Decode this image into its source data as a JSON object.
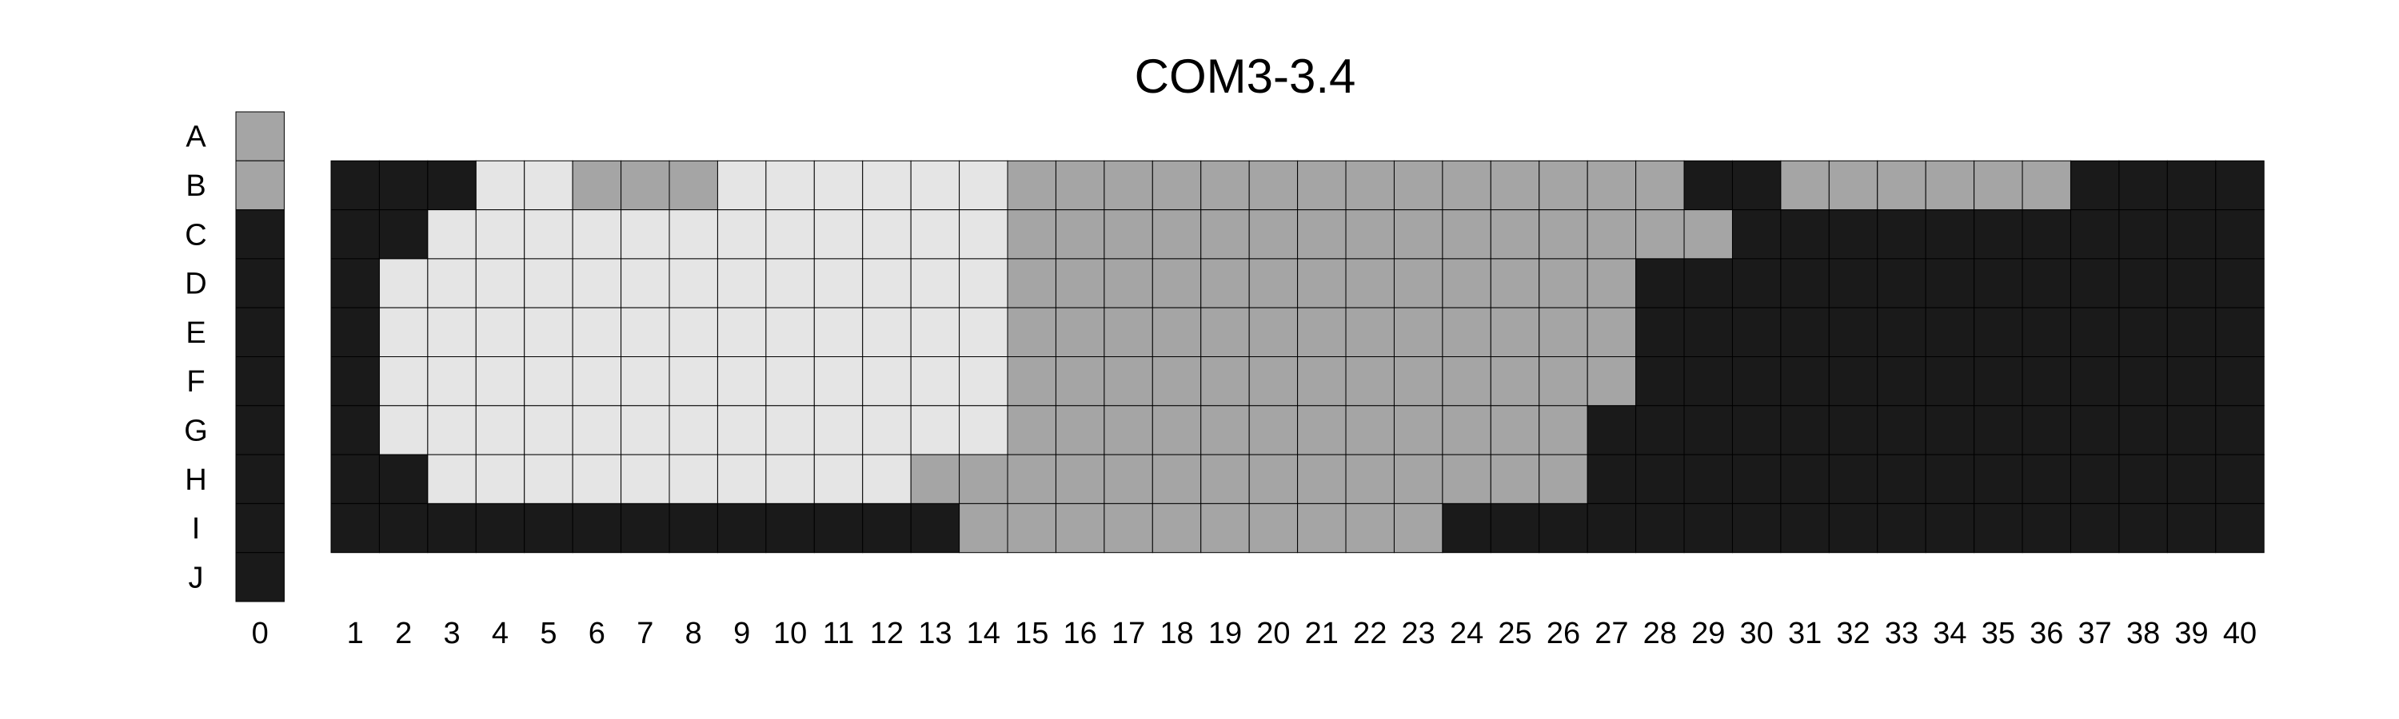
{
  "chart_data": {
    "type": "heatmap",
    "title": "COM3-3.4",
    "rows": [
      "A",
      "B",
      "C",
      "D",
      "E",
      "F",
      "G",
      "H",
      "I",
      "J"
    ],
    "columns": [
      "0",
      "1",
      "2",
      "3",
      "4",
      "5",
      "6",
      "7",
      "8",
      "9",
      "10",
      "11",
      "12",
      "13",
      "14",
      "15",
      "16",
      "17",
      "18",
      "19",
      "20",
      "21",
      "22",
      "23",
      "24",
      "25",
      "26",
      "27",
      "28",
      "29",
      "30",
      "31",
      "32",
      "33",
      "34",
      "35",
      "36",
      "37",
      "38",
      "39",
      "40"
    ],
    "colors": {
      "0": "#1a1a1a",
      "1": "#a5a5a5",
      "2": "#e5e5e5"
    },
    "column_0": [
      1,
      1,
      0,
      0,
      0,
      0,
      0,
      0,
      0,
      0
    ],
    "plate": {
      "B": [
        0,
        0,
        0,
        2,
        2,
        1,
        1,
        1,
        2,
        2,
        2,
        2,
        2,
        2,
        1,
        1,
        1,
        1,
        1,
        1,
        1,
        1,
        1,
        1,
        1,
        1,
        1,
        1,
        0,
        0,
        1,
        1,
        1,
        1,
        1,
        1,
        0,
        0,
        0,
        0
      ],
      "C": [
        0,
        0,
        2,
        2,
        2,
        2,
        2,
        2,
        2,
        2,
        2,
        2,
        2,
        2,
        1,
        1,
        1,
        1,
        1,
        1,
        1,
        1,
        1,
        1,
        1,
        1,
        1,
        1,
        1,
        0,
        0,
        0,
        0,
        0,
        0,
        0,
        0,
        0,
        0,
        0
      ],
      "D": [
        0,
        2,
        2,
        2,
        2,
        2,
        2,
        2,
        2,
        2,
        2,
        2,
        2,
        2,
        1,
        1,
        1,
        1,
        1,
        1,
        1,
        1,
        1,
        1,
        1,
        1,
        1,
        0,
        0,
        0,
        0,
        0,
        0,
        0,
        0,
        0,
        0,
        0,
        0,
        0
      ],
      "E": [
        0,
        2,
        2,
        2,
        2,
        2,
        2,
        2,
        2,
        2,
        2,
        2,
        2,
        2,
        1,
        1,
        1,
        1,
        1,
        1,
        1,
        1,
        1,
        1,
        1,
        1,
        1,
        0,
        0,
        0,
        0,
        0,
        0,
        0,
        0,
        0,
        0,
        0,
        0,
        0
      ],
      "F": [
        0,
        2,
        2,
        2,
        2,
        2,
        2,
        2,
        2,
        2,
        2,
        2,
        2,
        2,
        1,
        1,
        1,
        1,
        1,
        1,
        1,
        1,
        1,
        1,
        1,
        1,
        1,
        0,
        0,
        0,
        0,
        0,
        0,
        0,
        0,
        0,
        0,
        0,
        0,
        0
      ],
      "G": [
        0,
        2,
        2,
        2,
        2,
        2,
        2,
        2,
        2,
        2,
        2,
        2,
        2,
        2,
        1,
        1,
        1,
        1,
        1,
        1,
        1,
        1,
        1,
        1,
        1,
        1,
        0,
        0,
        0,
        0,
        0,
        0,
        0,
        0,
        0,
        0,
        0,
        0,
        0,
        0
      ],
      "H": [
        0,
        0,
        2,
        2,
        2,
        2,
        2,
        2,
        2,
        2,
        2,
        2,
        1,
        1,
        1,
        1,
        1,
        1,
        1,
        1,
        1,
        1,
        1,
        1,
        1,
        1,
        0,
        0,
        0,
        0,
        0,
        0,
        0,
        0,
        0,
        0,
        0,
        0,
        0,
        0
      ],
      "I": [
        0,
        0,
        0,
        0,
        0,
        0,
        0,
        0,
        0,
        0,
        0,
        0,
        0,
        1,
        1,
        1,
        1,
        1,
        1,
        1,
        1,
        1,
        1,
        0,
        0,
        0,
        0,
        0,
        0,
        0,
        0,
        0,
        0,
        0,
        0,
        0,
        0,
        0,
        0,
        0
      ]
    }
  }
}
